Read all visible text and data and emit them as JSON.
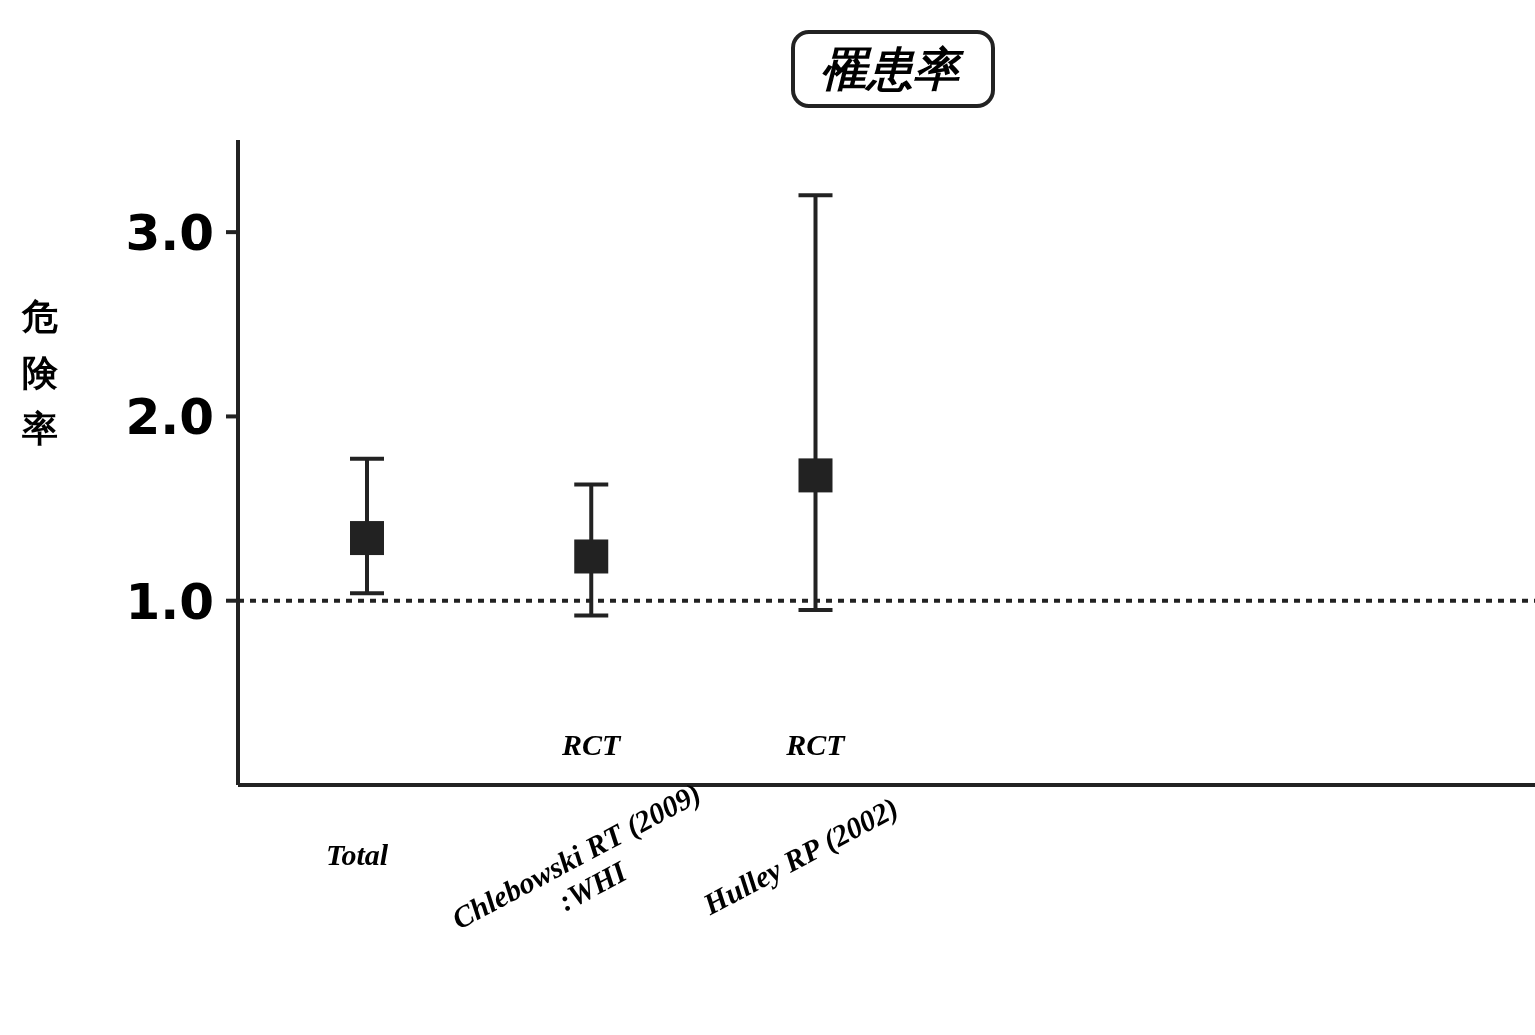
{
  "chart_data": {
    "type": "scatter",
    "title": "罹患率",
    "ylabel": "危険率",
    "categories": [
      "Total",
      "Chlebowski RT (2009)\n:WHI",
      "Hulley RP (2002)"
    ],
    "values": [
      1.34,
      1.24,
      1.68
    ],
    "errors": [
      [
        1.04,
        1.77
      ],
      [
        0.92,
        1.63
      ],
      [
        0.95,
        3.2
      ]
    ],
    "color": "#222222",
    "marker": "square",
    "ylim": [
      0,
      3.5
    ],
    "yticks": [
      {
        "value": 1,
        "label": "1.0"
      },
      {
        "value": 2,
        "label": "2.0"
      },
      {
        "value": 3,
        "label": "3.0"
      }
    ],
    "ref_lines": [
      {
        "axis": "y",
        "value": 1,
        "line_style": "dotted"
      }
    ],
    "annotations": [
      "RCT",
      "RCT"
    ],
    "grid": false
  }
}
